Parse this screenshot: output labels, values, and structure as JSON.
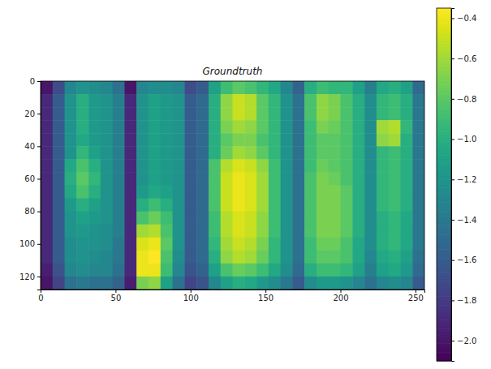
{
  "chart_data": {
    "type": "heatmap",
    "title": "Groundtruth",
    "xlim": [
      0,
      256
    ],
    "ylim": [
      128,
      0
    ],
    "xticks": [
      0,
      50,
      100,
      150,
      200,
      250
    ],
    "yticks": [
      0,
      20,
      40,
      60,
      80,
      100,
      120
    ],
    "x_edges": [
      0,
      8,
      16,
      24,
      32,
      40,
      48,
      56,
      64,
      72,
      80,
      88,
      96,
      104,
      112,
      120,
      128,
      136,
      144,
      152,
      160,
      168,
      176,
      184,
      192,
      200,
      208,
      216,
      224,
      232,
      240,
      248,
      256
    ],
    "y_edges": [
      0,
      8,
      16,
      24,
      32,
      40,
      48,
      56,
      64,
      72,
      80,
      88,
      96,
      104,
      112,
      120,
      128
    ],
    "zlim": [
      -2.1,
      -0.35
    ],
    "zticks": [
      {
        "value": -2.0,
        "label": "−2.0"
      },
      {
        "value": -1.8,
        "label": "−1.8"
      },
      {
        "value": -1.6,
        "label": "−1.6"
      },
      {
        "value": -1.4,
        "label": "−1.4"
      },
      {
        "value": -1.2,
        "label": "−1.2"
      },
      {
        "value": -1.0,
        "label": "−1.0"
      },
      {
        "value": -0.8,
        "label": "−0.8"
      },
      {
        "value": -0.6,
        "label": "−0.6"
      },
      {
        "value": -0.4,
        "label": "−0.4"
      }
    ],
    "z": [
      [
        -2.0,
        -1.7,
        -1.3,
        -1.2,
        -1.25,
        -1.3,
        -1.45,
        -2.0,
        -1.3,
        -1.25,
        -1.25,
        -1.3,
        -1.7,
        -1.6,
        -1.1,
        -0.9,
        -0.8,
        -0.85,
        -0.95,
        -1.05,
        -1.3,
        -1.55,
        -1.0,
        -0.9,
        -0.95,
        -0.95,
        -1.1,
        -1.35,
        -1.05,
        -1.0,
        -1.1,
        -1.5
      ],
      [
        -1.9,
        -1.6,
        -1.2,
        -1.0,
        -1.15,
        -1.2,
        -1.35,
        -1.9,
        -1.2,
        -1.1,
        -1.15,
        -1.2,
        -1.6,
        -1.5,
        -1.0,
        -0.65,
        -0.5,
        -0.55,
        -0.8,
        -0.95,
        -1.2,
        -1.45,
        -0.85,
        -0.65,
        -0.7,
        -0.85,
        -1.0,
        -1.25,
        -0.95,
        -0.9,
        -1.0,
        -1.4
      ],
      [
        -1.9,
        -1.6,
        -1.2,
        -1.0,
        -1.15,
        -1.2,
        -1.35,
        -1.9,
        -1.2,
        -1.1,
        -1.15,
        -1.2,
        -1.6,
        -1.5,
        -1.0,
        -0.65,
        -0.5,
        -0.55,
        -0.8,
        -0.95,
        -1.2,
        -1.45,
        -0.85,
        -0.65,
        -0.7,
        -0.85,
        -1.0,
        -1.25,
        -0.95,
        -0.9,
        -1.0,
        -1.4
      ],
      [
        -1.9,
        -1.6,
        -1.2,
        -1.0,
        -1.15,
        -1.2,
        -1.35,
        -1.9,
        -1.2,
        -1.1,
        -1.15,
        -1.2,
        -1.6,
        -1.5,
        -1.0,
        -0.7,
        -0.6,
        -0.65,
        -0.8,
        -0.95,
        -1.2,
        -1.45,
        -0.9,
        -0.7,
        -0.75,
        -0.85,
        -1.0,
        -1.25,
        -0.6,
        -0.55,
        -0.95,
        -1.4
      ],
      [
        -1.9,
        -1.6,
        -1.2,
        -1.05,
        -1.15,
        -1.2,
        -1.35,
        -1.9,
        -1.2,
        -1.1,
        -1.15,
        -1.2,
        -1.6,
        -1.5,
        -1.0,
        -0.8,
        -0.7,
        -0.7,
        -0.85,
        -0.95,
        -1.2,
        -1.45,
        -0.9,
        -0.8,
        -0.8,
        -0.85,
        -1.0,
        -1.25,
        -0.65,
        -0.6,
        -1.0,
        -1.4
      ],
      [
        -1.9,
        -1.6,
        -1.2,
        -0.95,
        -1.1,
        -1.2,
        -1.35,
        -1.9,
        -1.2,
        -1.1,
        -1.15,
        -1.2,
        -1.6,
        -1.5,
        -1.0,
        -0.75,
        -0.6,
        -0.65,
        -0.8,
        -0.95,
        -1.2,
        -1.45,
        -0.9,
        -0.8,
        -0.8,
        -0.85,
        -1.0,
        -1.25,
        -0.95,
        -0.9,
        -1.0,
        -1.4
      ],
      [
        -1.9,
        -1.6,
        -1.05,
        -0.85,
        -1.0,
        -1.2,
        -1.35,
        -1.9,
        -1.2,
        -1.1,
        -1.15,
        -1.2,
        -1.6,
        -1.5,
        -0.85,
        -0.55,
        -0.45,
        -0.5,
        -0.65,
        -0.9,
        -1.2,
        -1.45,
        -0.9,
        -0.75,
        -0.8,
        -0.85,
        -1.0,
        -1.25,
        -0.95,
        -0.9,
        -1.0,
        -1.4
      ],
      [
        -1.9,
        -1.6,
        -1.0,
        -0.8,
        -0.95,
        -1.2,
        -1.35,
        -1.9,
        -1.2,
        -1.1,
        -1.15,
        -1.2,
        -1.6,
        -1.5,
        -0.85,
        -0.5,
        -0.4,
        -0.45,
        -0.6,
        -0.9,
        -1.2,
        -1.45,
        -0.85,
        -0.7,
        -0.75,
        -0.85,
        -1.0,
        -1.25,
        -0.95,
        -0.9,
        -1.0,
        -1.4
      ],
      [
        -1.9,
        -1.6,
        -1.05,
        -0.85,
        -1.0,
        -1.2,
        -1.35,
        -1.9,
        -1.15,
        -1.05,
        -1.1,
        -1.2,
        -1.6,
        -1.5,
        -0.85,
        -0.5,
        -0.4,
        -0.45,
        -0.6,
        -0.9,
        -1.2,
        -1.45,
        -0.85,
        -0.7,
        -0.7,
        -0.8,
        -1.0,
        -1.25,
        -0.95,
        -0.9,
        -1.0,
        -1.4
      ],
      [
        -1.9,
        -1.6,
        -1.15,
        -1.0,
        -1.1,
        -1.2,
        -1.35,
        -1.9,
        -1.0,
        -0.9,
        -1.0,
        -1.2,
        -1.6,
        -1.5,
        -0.85,
        -0.5,
        -0.4,
        -0.45,
        -0.6,
        -0.9,
        -1.2,
        -1.45,
        -0.85,
        -0.7,
        -0.7,
        -0.8,
        -1.0,
        -1.25,
        -0.95,
        -0.9,
        -1.0,
        -1.4
      ],
      [
        -1.9,
        -1.6,
        -1.2,
        -1.1,
        -1.15,
        -1.2,
        -1.35,
        -1.9,
        -0.85,
        -0.75,
        -0.9,
        -1.2,
        -1.6,
        -1.5,
        -0.9,
        -0.55,
        -0.45,
        -0.5,
        -0.65,
        -0.9,
        -1.2,
        -1.45,
        -0.85,
        -0.7,
        -0.7,
        -0.8,
        -1.0,
        -1.25,
        -1.0,
        -0.95,
        -1.05,
        -1.4
      ],
      [
        -1.9,
        -1.6,
        -1.2,
        -1.15,
        -1.2,
        -1.25,
        -1.35,
        -1.9,
        -0.6,
        -0.55,
        -0.85,
        -1.2,
        -1.6,
        -1.5,
        -0.9,
        -0.55,
        -0.45,
        -0.5,
        -0.65,
        -0.9,
        -1.2,
        -1.45,
        -0.85,
        -0.7,
        -0.7,
        -0.8,
        -1.0,
        -1.25,
        -1.0,
        -0.95,
        -1.05,
        -1.4
      ],
      [
        -1.9,
        -1.6,
        -1.25,
        -1.2,
        -1.2,
        -1.25,
        -1.4,
        -1.9,
        -0.45,
        -0.4,
        -0.8,
        -1.2,
        -1.6,
        -1.5,
        -0.95,
        -0.6,
        -0.5,
        -0.55,
        -0.7,
        -0.95,
        -1.2,
        -1.45,
        -0.9,
        -0.75,
        -0.75,
        -0.85,
        -1.05,
        -1.25,
        -1.0,
        -0.95,
        -1.05,
        -1.4
      ],
      [
        -1.9,
        -1.6,
        -1.25,
        -1.2,
        -1.25,
        -1.3,
        -1.4,
        -1.9,
        -0.4,
        -0.35,
        -0.85,
        -1.25,
        -1.6,
        -1.5,
        -1.0,
        -0.65,
        -0.55,
        -0.6,
        -0.75,
        -0.95,
        -1.2,
        -1.45,
        -0.9,
        -0.8,
        -0.8,
        -0.85,
        -1.05,
        -1.3,
        -1.05,
        -1.0,
        -1.1,
        -1.45
      ],
      [
        -1.95,
        -1.65,
        -1.3,
        -1.25,
        -1.3,
        -1.3,
        -1.45,
        -1.9,
        -0.4,
        -0.4,
        -0.9,
        -1.3,
        -1.65,
        -1.55,
        -1.1,
        -0.85,
        -0.75,
        -0.8,
        -0.9,
        -1.05,
        -1.25,
        -1.5,
        -1.0,
        -0.9,
        -0.9,
        -0.95,
        -1.1,
        -1.35,
        -1.1,
        -1.05,
        -1.15,
        -1.5
      ],
      [
        -2.0,
        -1.75,
        -1.45,
        -1.4,
        -1.45,
        -1.45,
        -1.55,
        -1.95,
        -0.7,
        -0.65,
        -1.1,
        -1.45,
        -1.75,
        -1.65,
        -1.3,
        -1.1,
        -1.0,
        -1.05,
        -1.15,
        -1.25,
        -1.4,
        -1.6,
        -1.25,
        -1.15,
        -1.15,
        -1.2,
        -1.3,
        -1.45,
        -1.3,
        -1.25,
        -1.3,
        -1.6
      ]
    ]
  }
}
